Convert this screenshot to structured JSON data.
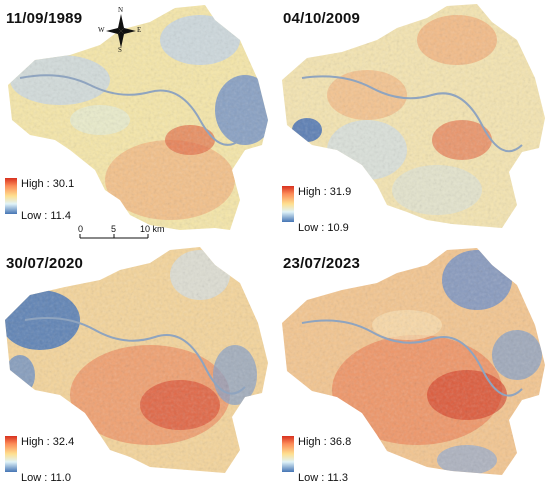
{
  "panels": [
    {
      "date": "11/09/1989",
      "high": "High : 30.1",
      "low": "Low : 11.4",
      "scheme": "1989"
    },
    {
      "date": "04/10/2009",
      "high": "High : 31.9",
      "low": "Low : 10.9",
      "scheme": "2009"
    },
    {
      "date": "30/07/2020",
      "high": "High : 32.4",
      "low": "Low : 11.0",
      "scheme": "2020"
    },
    {
      "date": "23/07/2023",
      "high": "High : 36.8",
      "low": "Low : 11.3",
      "scheme": "2023"
    }
  ],
  "scale_bar": {
    "ticks": [
      "0",
      "5",
      "10 km"
    ]
  },
  "compass": {
    "n": "N",
    "s": "S",
    "e": "E",
    "w": "W"
  },
  "colors": {
    "high": "#d7301f",
    "mid": "#fee090",
    "low": "#4575b4",
    "river": "#8fa4bf"
  }
}
